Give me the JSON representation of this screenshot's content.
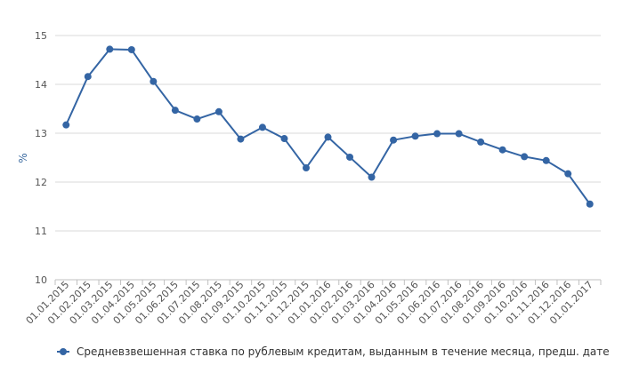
{
  "chart_data": {
    "type": "line",
    "title": "",
    "xlabel": "",
    "ylabel": "%",
    "ylim": [
      10,
      15
    ],
    "yticks": [
      10,
      11,
      12,
      13,
      14,
      15
    ],
    "grid": true,
    "legend_position": "bottom",
    "categories": [
      "01.01.2015",
      "01.02.2015",
      "01.03.2015",
      "01.04.2015",
      "01.05.2015",
      "01.06.2015",
      "01.07.2015",
      "01.08.2015",
      "01.09.2015",
      "01.10.2015",
      "01.11.2015",
      "01.12.2015",
      "01.01.2016",
      "01.02.2016",
      "01.03.2016",
      "01.04.2016",
      "01.05.2016",
      "01.06.2016",
      "01.07.2016",
      "01.08.2016",
      "01.09.2016",
      "01.10.2016",
      "01.11.2016",
      "01.12.2016",
      "01.01.2017"
    ],
    "series": [
      {
        "name": "Средневзвешенная ставка по рублевым кредитам, выданным в течение месяца, предш. дате",
        "color": "#3465a4",
        "values": [
          13.17,
          14.16,
          14.72,
          14.71,
          14.06,
          13.47,
          13.29,
          13.44,
          12.88,
          13.12,
          12.89,
          12.29,
          12.92,
          12.51,
          12.1,
          12.86,
          12.94,
          12.99,
          12.99,
          12.82,
          12.66,
          12.52,
          12.44,
          12.17,
          11.55
        ]
      }
    ]
  }
}
